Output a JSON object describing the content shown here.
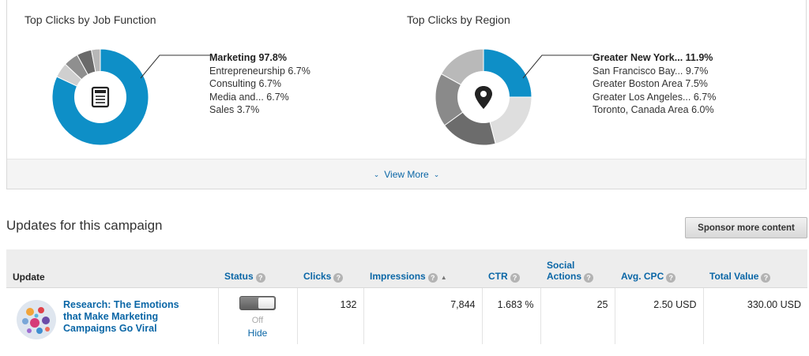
{
  "job_function": {
    "title": "Top Clicks by Job Function",
    "icon": "document-icon",
    "legend": [
      {
        "label": "Marketing 97.8%",
        "highlight": true
      },
      {
        "label": "Entrepreneurship 6.7%"
      },
      {
        "label": "Consulting 6.7%"
      },
      {
        "label": "Media and... 6.7%"
      },
      {
        "label": "Sales 3.7%"
      }
    ],
    "slices": [
      {
        "value": 82,
        "color": "#0e8fc7"
      },
      {
        "value": 5,
        "color": "#cfcfcf"
      },
      {
        "value": 5,
        "color": "#8f8f8f"
      },
      {
        "value": 5,
        "color": "#6a6a6a"
      },
      {
        "value": 3,
        "color": "#b7b7b7"
      }
    ]
  },
  "region": {
    "title": "Top Clicks by Region",
    "icon": "map-pin-icon",
    "legend": [
      {
        "label": "Greater New York... 11.9%",
        "highlight": true
      },
      {
        "label": "San Francisco Bay... 9.7%"
      },
      {
        "label": "Greater Boston Area 7.5%"
      },
      {
        "label": "Greater Los Angeles... 6.7%"
      },
      {
        "label": "Toronto, Canada Area 6.0%"
      }
    ],
    "slices": [
      {
        "value": 25,
        "color": "#0e8fc7"
      },
      {
        "value": 21,
        "color": "#dedede"
      },
      {
        "value": 19,
        "color": "#6c6c6c"
      },
      {
        "value": 18,
        "color": "#8a8a8a"
      },
      {
        "value": 17,
        "color": "#b9b9b9"
      }
    ]
  },
  "view_more": "View More",
  "updates": {
    "title": "Updates for this campaign",
    "sponsor_button": "Sponsor more content",
    "columns": {
      "update": "Update",
      "status": "Status",
      "clicks": "Clicks",
      "impressions": "Impressions",
      "ctr": "CTR",
      "social_line1": "Social",
      "social_line2": "Actions",
      "avg_cpc": "Avg. CPC",
      "total_value": "Total Value"
    },
    "row": {
      "title": "Research: The Emotions that Make Marketing Campaigns Go Viral",
      "status": "Off",
      "hide": "Hide",
      "clicks": "132",
      "impressions": "7,844",
      "ctr": "1.683 %",
      "social_actions": "25",
      "avg_cpc": "2.50 USD",
      "total_value": "330.00 USD"
    }
  }
}
